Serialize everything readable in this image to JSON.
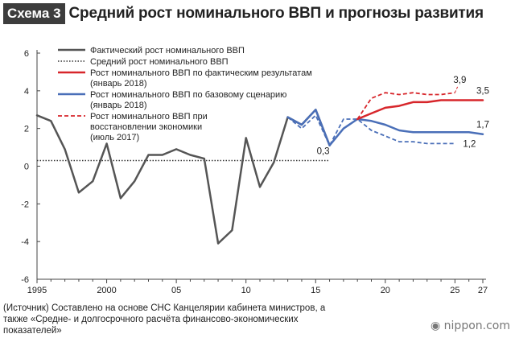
{
  "header": {
    "badge": "Схема 3",
    "title": "Средний рост номинального ВВП и прогнозы развития"
  },
  "source": {
    "line1": "(Источник) Составлено на основе СНС Канцелярии кабинета министров, а",
    "line2": "также «Средне- и долгосрочного расчёта финансово-экономических",
    "line3": "показателей»"
  },
  "brand": {
    "name": "nippon.com",
    "icon": "globe-icon"
  },
  "chart_data": {
    "type": "line",
    "title": "Средний рост номинального ВВП и прогнозы развития",
    "xlabel": "",
    "ylabel": "",
    "xlim": [
      1995,
      2027
    ],
    "ylim": [
      -6,
      6
    ],
    "y_ticks": [
      -6,
      -4,
      -2,
      0,
      2,
      4,
      6
    ],
    "y_tick_labels": [
      "-6",
      "-4",
      "-2",
      "0",
      "2",
      "4",
      "6"
    ],
    "x_ticks": [
      1995,
      2000,
      2005,
      2010,
      2015,
      2020,
      2025,
      2027
    ],
    "x_tick_labels": [
      "1995",
      "2000",
      "05",
      "10",
      "15",
      "20",
      "25",
      "27"
    ],
    "grid": false,
    "legend_position": "top-left",
    "series": [
      {
        "name": "Фактический рост номинального ВВП",
        "color": "#555555",
        "style": "solid",
        "x": [
          1995,
          1996,
          1997,
          1998,
          1999,
          2000,
          2001,
          2002,
          2003,
          2004,
          2005,
          2006,
          2007,
          2008,
          2009,
          2010,
          2011,
          2012,
          2013,
          2014,
          2015,
          2016
        ],
        "y": [
          2.7,
          2.4,
          0.9,
          -1.4,
          -0.8,
          1.2,
          -1.7,
          -0.8,
          0.6,
          0.6,
          0.9,
          0.6,
          0.4,
          -4.1,
          -3.4,
          1.5,
          -1.1,
          0.2,
          2.6,
          2.2,
          3.0,
          1.1
        ]
      },
      {
        "name": "Средний рост номинального ВВП",
        "color": "#333333",
        "style": "dotted",
        "x": [
          1995,
          2016
        ],
        "y": [
          0.3,
          0.3
        ]
      },
      {
        "name": "Рост номинального ВВП по фактическим результатам (январь 2018)",
        "color": "#d7262b",
        "style": "solid",
        "x": [
          2018,
          2019,
          2020,
          2021,
          2022,
          2023,
          2024,
          2025,
          2026,
          2027
        ],
        "y": [
          2.5,
          2.8,
          3.1,
          3.2,
          3.4,
          3.4,
          3.5,
          3.5,
          3.5,
          3.5
        ]
      },
      {
        "name": "Рост номинального ВВП по базовому сценарию (январь 2018)",
        "color": "#4a6fb8",
        "style": "solid",
        "x": [
          2013,
          2014,
          2015,
          2016,
          2017,
          2018,
          2019,
          2020,
          2021,
          2022,
          2023,
          2024,
          2025,
          2026,
          2027
        ],
        "y": [
          2.6,
          2.2,
          3.0,
          1.1,
          2.0,
          2.5,
          2.4,
          2.2,
          1.9,
          1.8,
          1.8,
          1.8,
          1.8,
          1.8,
          1.7
        ]
      },
      {
        "name": "Рост номинального ВВП при восстановлении экономики (июль 2017)",
        "color": "#d7262b",
        "style": "dashed",
        "x": [
          2018,
          2019,
          2020,
          2021,
          2022,
          2023,
          2024,
          2025
        ],
        "y": [
          2.5,
          3.6,
          3.9,
          3.8,
          3.9,
          3.8,
          3.8,
          3.9
        ]
      },
      {
        "name": "",
        "color": "#4a6fb8",
        "style": "dashed",
        "x": [
          2013,
          2014,
          2015,
          2016,
          2017,
          2018,
          2019,
          2020,
          2021,
          2022,
          2023,
          2024,
          2025
        ],
        "y": [
          2.6,
          2.0,
          2.7,
          1.1,
          2.5,
          2.5,
          1.9,
          1.6,
          1.3,
          1.3,
          1.2,
          1.2,
          1.2
        ]
      }
    ],
    "legend": [
      {
        "line1": "Фактический рост номинального ВВП",
        "line2": "",
        "line3": "",
        "color": "#555555",
        "style": "solid"
      },
      {
        "line1": "Средний рост номинального ВВП",
        "line2": "",
        "line3": "",
        "color": "#333333",
        "style": "dotted"
      },
      {
        "line1": "Рост номинального ВВП по фактическим результатам",
        "line2": "(январь 2018)",
        "line3": "",
        "color": "#d7262b",
        "style": "solid"
      },
      {
        "line1": "Рост номинального ВВП по базовому сценарию",
        "line2": "(январь 2018)",
        "line3": "",
        "color": "#4a6fb8",
        "style": "solid"
      },
      {
        "line1": "Рост номинального ВВП при",
        "line2": "восстановлении экономики",
        "line3": "(июль 2017)",
        "color": "#d7262b",
        "style": "dashed"
      }
    ],
    "annotations": [
      {
        "text": "0,3",
        "x": 2016,
        "y": 0.3,
        "anchor": "below-right",
        "color": "#222222"
      },
      {
        "text": "3,9",
        "x": 2025,
        "y": 3.9,
        "anchor": "above",
        "color": "#222222"
      },
      {
        "text": "3,5",
        "x": 2027,
        "y": 3.5,
        "anchor": "above",
        "color": "#222222"
      },
      {
        "text": "1,7",
        "x": 2027,
        "y": 1.7,
        "anchor": "above",
        "color": "#222222"
      },
      {
        "text": "1,2",
        "x": 2025,
        "y": 1.2,
        "anchor": "right",
        "color": "#222222"
      }
    ]
  }
}
